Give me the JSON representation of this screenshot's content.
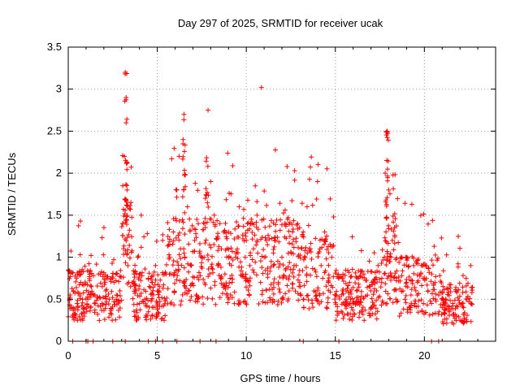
{
  "chart_data": {
    "type": "scatter",
    "title": "Day 297 of 2025, SRMTID for receiver ucak",
    "xlabel": "GPS time / hours",
    "ylabel": "SRMTID / TECUs",
    "xlim": [
      0,
      24
    ],
    "ylim": [
      0,
      3.5
    ],
    "xticks": [
      "0",
      "5",
      "10",
      "15",
      "20"
    ],
    "yticks": [
      "0",
      "0.5",
      "1",
      "1.5",
      "2",
      "2.5",
      "3",
      "3.5"
    ],
    "grid": true,
    "marker": "+",
    "color": "#ff0000",
    "series": [
      {
        "name": "SRMTID",
        "x": [
          0.0,
          0.1,
          0.2,
          0.3,
          0.5,
          0.7,
          0.9,
          1.1,
          1.3,
          1.5,
          1.7,
          1.9,
          2.1,
          2.3,
          2.5,
          2.7,
          2.9,
          3.05,
          3.15,
          3.2,
          3.25,
          3.3,
          3.35,
          3.4,
          3.5,
          3.7,
          3.9,
          4.1,
          4.3,
          4.5,
          4.7,
          4.9,
          5.1,
          5.3,
          5.5,
          5.7,
          5.9,
          6.1,
          6.3,
          6.45,
          6.5,
          6.7,
          6.9,
          7.1,
          7.3,
          7.5,
          7.7,
          7.85,
          8.0,
          8.2,
          8.4,
          8.6,
          8.8,
          9.0,
          9.2,
          9.4,
          9.6,
          9.8,
          10.0,
          10.2,
          10.4,
          10.6,
          10.8,
          10.85,
          11.0,
          11.2,
          11.4,
          11.6,
          11.8,
          12.0,
          12.2,
          12.4,
          12.6,
          12.8,
          13.0,
          13.2,
          13.4,
          13.6,
          13.8,
          14.0,
          14.2,
          14.4,
          14.6,
          14.8,
          15.0,
          15.2,
          15.4,
          15.6,
          15.8,
          16.0,
          16.2,
          16.4,
          16.6,
          16.8,
          17.0,
          17.2,
          17.4,
          17.6,
          17.8,
          17.9,
          18.0,
          18.2,
          18.4,
          18.6,
          18.8,
          19.0,
          19.2,
          19.4,
          19.6,
          19.8,
          20.0,
          20.2,
          20.4,
          20.6,
          20.8,
          21.0,
          21.2,
          21.4,
          21.6,
          21.8,
          22.0,
          22.2,
          22.4,
          22.6
        ],
        "y": [
          0.85,
          0.55,
          0.4,
          0.6,
          0.45,
          0.7,
          0.3,
          0.5,
          0.65,
          0.55,
          0.8,
          0.45,
          0.6,
          0.5,
          0.75,
          0.55,
          0.6,
          1.4,
          2.2,
          3.2,
          2.6,
          1.8,
          0.9,
          0.7,
          0.65,
          0.8,
          1.0,
          1.5,
          0.5,
          0.35,
          0.7,
          0.9,
          0.6,
          1.2,
          0.8,
          1.0,
          1.3,
          1.8,
          1.1,
          2.4,
          2.7,
          1.6,
          0.9,
          1.2,
          1.4,
          1.0,
          1.7,
          2.75,
          1.9,
          1.5,
          0.9,
          1.1,
          0.8,
          1.3,
          0.7,
          1.0,
          1.6,
          0.8,
          1.2,
          0.9,
          1.1,
          1.5,
          0.7,
          3.02,
          1.0,
          0.8,
          0.95,
          1.2,
          0.7,
          1.0,
          0.85,
          0.6,
          1.3,
          0.9,
          0.7,
          0.5,
          0.8,
          1.1,
          0.6,
          1.9,
          0.9,
          1.3,
          0.7,
          1.0,
          0.55,
          0.75,
          0.6,
          0.5,
          0.7,
          0.45,
          0.6,
          0.5,
          0.8,
          0.55,
          0.4,
          0.6,
          0.9,
          0.7,
          2.0,
          2.5,
          1.8,
          1.2,
          0.5,
          0.3,
          0.6,
          0.7,
          0.4,
          0.9,
          0.55,
          0.8,
          0.75,
          0.6,
          0.45,
          0.7,
          0.55,
          0.4,
          0.5,
          0.35,
          0.45,
          0.3,
          0.25,
          0.4,
          0.5,
          0.9
        ],
        "dense_cluster_centers_hours": [
          0.5,
          2.0,
          3.5,
          6.0,
          7.5,
          9.5,
          11.0,
          12.5,
          14.0,
          16.0,
          18.0,
          20.0,
          22.0
        ]
      }
    ],
    "zero_markers_x": [
      0.25,
      1.0,
      1.1,
      1.4,
      2.5,
      3.2,
      4.5,
      4.9,
      5.3,
      6.1,
      7.4,
      8.3,
      13.2,
      15.2,
      20.4,
      20.8
    ]
  }
}
